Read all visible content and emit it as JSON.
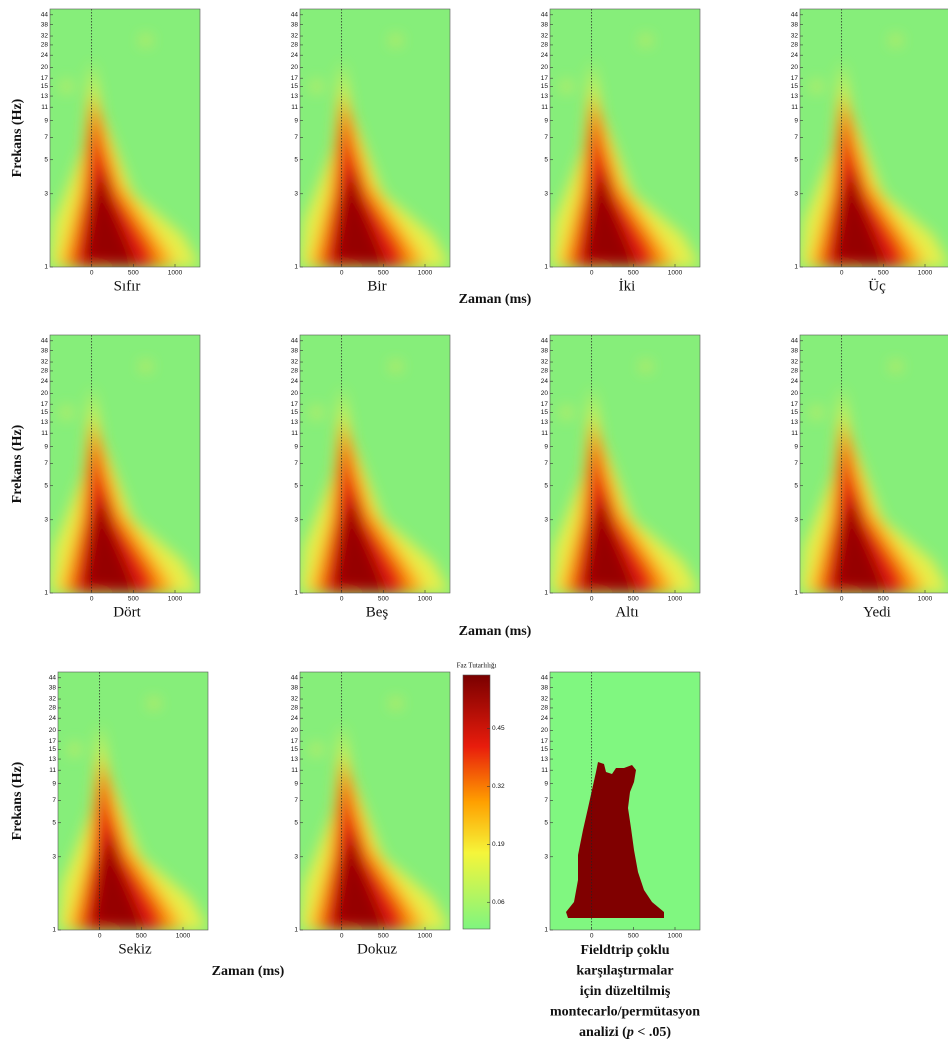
{
  "chart_data": {
    "type": "heatmap-grid",
    "xlabel": "Zaman (ms)",
    "ylabel": "Frekans (Hz)",
    "xlim": [
      -500,
      1300
    ],
    "xticks": [
      0,
      500,
      1000
    ],
    "ylim": [
      1,
      48
    ],
    "log_y": true,
    "yticks": [
      1,
      3,
      5,
      7,
      9,
      11,
      13,
      15,
      17,
      20,
      24,
      28,
      32,
      38,
      44
    ],
    "panels": [
      {
        "title": "Sıfır"
      },
      {
        "title": "Bir"
      },
      {
        "title": "İki"
      },
      {
        "title": "Üç"
      },
      {
        "title": "Dört"
      },
      {
        "title": "Beş"
      },
      {
        "title": "Altı"
      },
      {
        "title": "Yedi"
      },
      {
        "title": "Sekiz"
      },
      {
        "title": "Dokuz"
      }
    ],
    "colorbar": {
      "title": "Faz Tutarlılığı",
      "ylim": [
        0,
        0.57
      ],
      "ticks": [
        0.06,
        0.19,
        0.32,
        0.45
      ]
    },
    "stat_panel": {
      "title_lines": [
        "Fieldtrip çoklu",
        "karşılaştırmalar",
        "için düzeltilmiş",
        "montecarlo/permütasyon"
      ],
      "title_last": [
        "analizi (",
        "p",
        " < .05)"
      ]
    }
  }
}
